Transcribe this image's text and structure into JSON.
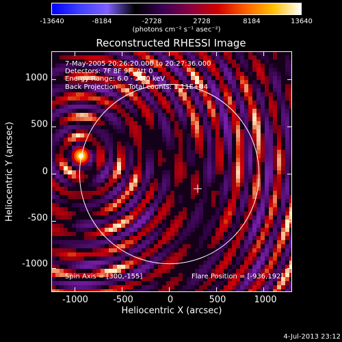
{
  "colorbar": {
    "ticks": [
      "-13640",
      "-8184",
      "-2728",
      "2728",
      "8184",
      "13640"
    ],
    "unit_label": "(photons cm⁻² s⁻¹ asec⁻²)",
    "colors": [
      "#0000ff",
      "#4040ff",
      "#8060ff",
      "#000000",
      "#3a0055",
      "#8a0040",
      "#d00000",
      "#ff6000",
      "#ffc000",
      "#ffffff"
    ]
  },
  "chart_data": {
    "type": "heatmap",
    "title": "Reconstructed RHESSI Image",
    "xlabel": "Heliocentric X (arcsec)",
    "ylabel": "Heliocentric Y (arcsec)",
    "xlim": [
      -1250,
      1300
    ],
    "ylim": [
      -1250,
      1300
    ],
    "x_ticks": [
      "-1000",
      "-500",
      "0",
      "500",
      "1000"
    ],
    "y_ticks": [
      "1000",
      "500",
      "0",
      "-500",
      "-1000"
    ],
    "x_tick_values": [
      -1000,
      -500,
      0,
      500,
      1000
    ],
    "y_tick_values": [
      1000,
      500,
      0,
      -500,
      -1000
    ],
    "colorbar_range": [
      -13640,
      13640
    ],
    "solar_disk_radius_arcsec": 950,
    "flare_source": {
      "x": -936,
      "y": 192
    },
    "disk_center_marker": {
      "x": 300,
      "y": -155
    },
    "info_lines": [
      "7-May-2005 20:26:20.000 to 20:27:36.000",
      "Detectors: 7F 8F 9F, Att 0",
      "Energy Range: 6.0 - 25.0 keV",
      "Back Projection     Total counts: 1.11E+04"
    ],
    "spin_axis": "Spin Axis = [300,-155]",
    "flare_position": "Flare Position = [-936,192]"
  },
  "timestamp": "4-Jul-2013 23:12"
}
